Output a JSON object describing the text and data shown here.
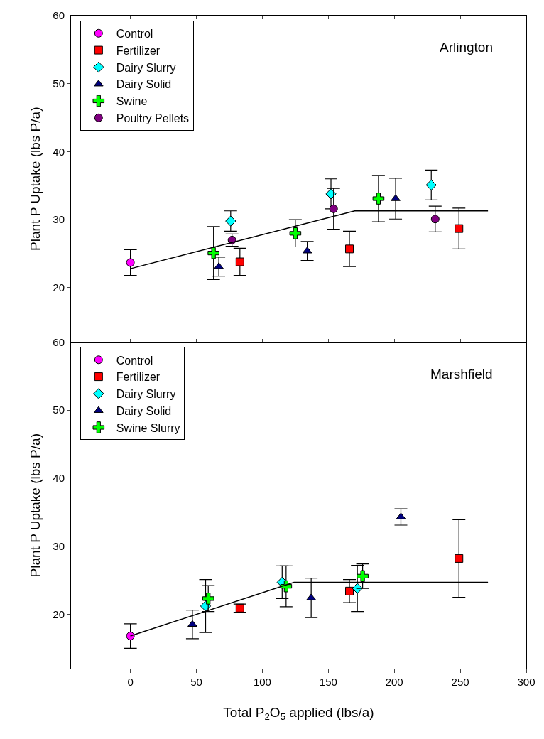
{
  "chart_data": [
    {
      "type": "scatter",
      "ylabel": "Plant P Uptake (lbs P/a)",
      "annotations": [
        "Arlington"
      ],
      "xlim": [
        -45,
        300
      ],
      "xticks": [
        0,
        50,
        100,
        150,
        200,
        250,
        300
      ],
      "ylim": [
        12,
        60
      ],
      "yticks": [
        20,
        30,
        40,
        50,
        60
      ],
      "tick_labels": "y",
      "legend": "top left",
      "grid": false,
      "series": [
        {
          "name": "Control",
          "color": "#ff00ff",
          "marker": "circle",
          "x": [
            0
          ],
          "values": [
            23.7
          ],
          "errors": [
            1.9
          ]
        },
        {
          "name": "Fertilizer",
          "color": "#ff0000",
          "marker": "square",
          "x": [
            83,
            166,
            249
          ],
          "values": [
            23.8,
            25.7,
            28.7
          ],
          "errors": [
            2.0,
            2.6,
            3.0
          ]
        },
        {
          "name": "Dairy Slurry",
          "color": "#00ffff",
          "marker": "diamond",
          "x": [
            76,
            152,
            228
          ],
          "values": [
            29.8,
            33.8,
            35.1
          ],
          "errors": [
            1.5,
            2.2,
            2.2
          ]
        },
        {
          "name": "Dairy Solid",
          "color": "#000080",
          "marker": "triangle",
          "x": [
            67,
            134,
            201
          ],
          "values": [
            23.1,
            25.4,
            33.1
          ],
          "errors": [
            1.4,
            1.4,
            3.0
          ]
        },
        {
          "name": "Swine",
          "color": "#00ff00",
          "marker": "cross",
          "x": [
            63,
            125,
            188
          ],
          "values": [
            25.1,
            28.0,
            33.1
          ],
          "errors": [
            3.9,
            2.0,
            3.4
          ]
        },
        {
          "name": "Poultry Pellets",
          "color": "#800080",
          "marker": "circle",
          "x": [
            77,
            154,
            231
          ],
          "values": [
            27.0,
            31.6,
            30.1
          ],
          "errors": [
            0.9,
            3.0,
            1.9
          ]
        },
        {
          "type": "line",
          "color": "#000000",
          "marker": "none",
          "line_style": "solid",
          "x": [
            0,
            170,
            271
          ],
          "values": [
            22.8,
            31.3,
            31.3
          ]
        }
      ]
    },
    {
      "type": "scatter",
      "xlabel": "Total P$_{2}$O$_{5}$ applied (lbs/a)",
      "ylabel": "Plant P Uptake (lbs P/a)",
      "annotations": [
        "Marshfield"
      ],
      "xlim": [
        -45,
        300
      ],
      "xticks": [
        0,
        50,
        100,
        150,
        200,
        250,
        300
      ],
      "ylim": [
        12,
        60
      ],
      "yticks": [
        20,
        30,
        40,
        50,
        60
      ],
      "legend": "top left",
      "grid": false,
      "series": [
        {
          "name": "Control",
          "color": "#ff00ff",
          "marker": "circle",
          "x": [
            0
          ],
          "values": [
            16.8
          ],
          "errors": [
            1.8
          ]
        },
        {
          "name": "Fertilizer",
          "color": "#ff0000",
          "marker": "square",
          "x": [
            83,
            166,
            249
          ],
          "values": [
            20.9,
            23.4,
            28.2
          ],
          "errors": [
            0.6,
            1.7,
            5.7
          ]
        },
        {
          "name": "Dairy Slurry",
          "color": "#00ffff",
          "marker": "diamond",
          "x": [
            57,
            115,
            172
          ],
          "values": [
            21.2,
            24.7,
            23.8
          ],
          "errors": [
            3.9,
            2.4,
            3.4
          ]
        },
        {
          "name": "Dairy Solid",
          "color": "#000080",
          "marker": "triangle",
          "x": [
            47,
            137,
            205
          ],
          "values": [
            18.5,
            22.4,
            34.3
          ],
          "errors": [
            2.1,
            2.9,
            1.2
          ]
        },
        {
          "name": "Swine Slurry",
          "color": "#00ff00",
          "marker": "cross",
          "x": [
            59,
            118,
            176
          ],
          "values": [
            22.3,
            24.1,
            25.6
          ],
          "errors": [
            1.9,
            3.0,
            1.8
          ]
        },
        {
          "type": "line",
          "color": "#000000",
          "marker": "none",
          "line_style": "solid",
          "x": [
            0,
            124,
            271
          ],
          "values": [
            16.8,
            24.7,
            24.7
          ]
        }
      ]
    }
  ]
}
